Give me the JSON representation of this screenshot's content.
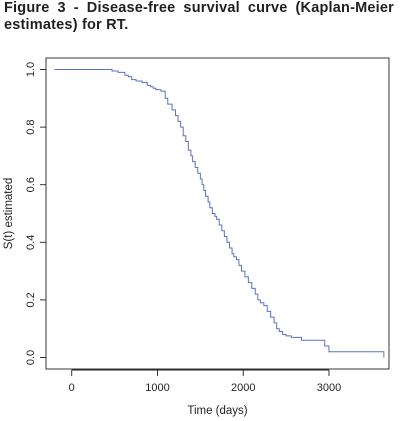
{
  "caption": "Figure 3 - Disease-free survival curve (Kaplan-Meier estimates) for RT.",
  "chart_data": {
    "type": "line",
    "step": true,
    "title": "",
    "xlabel": "Time (days)",
    "ylabel": "S(t) estimated",
    "xlim": [
      -300,
      3700
    ],
    "ylim": [
      -0.04,
      1.04
    ],
    "xticks": [
      0,
      1000,
      2000,
      3000
    ],
    "yticks": [
      0.0,
      0.2,
      0.4,
      0.6,
      0.8,
      1.0
    ],
    "xtick_labels": [
      "0",
      "1000",
      "2000",
      "3000"
    ],
    "ytick_labels": [
      "0.0",
      "0.2",
      "0.4",
      "0.6",
      "0.8",
      "1.0"
    ],
    "grid": false,
    "line_color": "#5b72c0",
    "series": [
      {
        "x": [
          -200,
          470,
          540,
          620,
          660,
          700,
          750,
          820,
          880,
          920,
          950,
          980,
          1040,
          1090,
          1120,
          1170,
          1210,
          1240,
          1270,
          1300,
          1330,
          1360,
          1390,
          1410,
          1440,
          1470,
          1500,
          1520,
          1540,
          1560,
          1590,
          1610,
          1640,
          1670,
          1690,
          1720,
          1750,
          1780,
          1810,
          1840,
          1870,
          1890,
          1920,
          1950,
          1980,
          2020,
          2060,
          2100,
          2140,
          2170,
          2200,
          2240,
          2280,
          2320,
          2360,
          2390,
          2420,
          2460,
          2500,
          2560,
          2680,
          2950,
          3000,
          3640
        ],
        "y": [
          1.0,
          0.995,
          0.99,
          0.98,
          0.975,
          0.965,
          0.96,
          0.955,
          0.945,
          0.94,
          0.935,
          0.93,
          0.925,
          0.9,
          0.88,
          0.86,
          0.84,
          0.82,
          0.8,
          0.77,
          0.75,
          0.72,
          0.7,
          0.68,
          0.66,
          0.64,
          0.62,
          0.6,
          0.58,
          0.56,
          0.54,
          0.52,
          0.5,
          0.49,
          0.48,
          0.46,
          0.44,
          0.42,
          0.4,
          0.38,
          0.36,
          0.35,
          0.34,
          0.32,
          0.3,
          0.28,
          0.26,
          0.24,
          0.22,
          0.2,
          0.19,
          0.18,
          0.16,
          0.14,
          0.12,
          0.1,
          0.09,
          0.08,
          0.075,
          0.07,
          0.06,
          0.04,
          0.02,
          0.0
        ]
      }
    ]
  }
}
